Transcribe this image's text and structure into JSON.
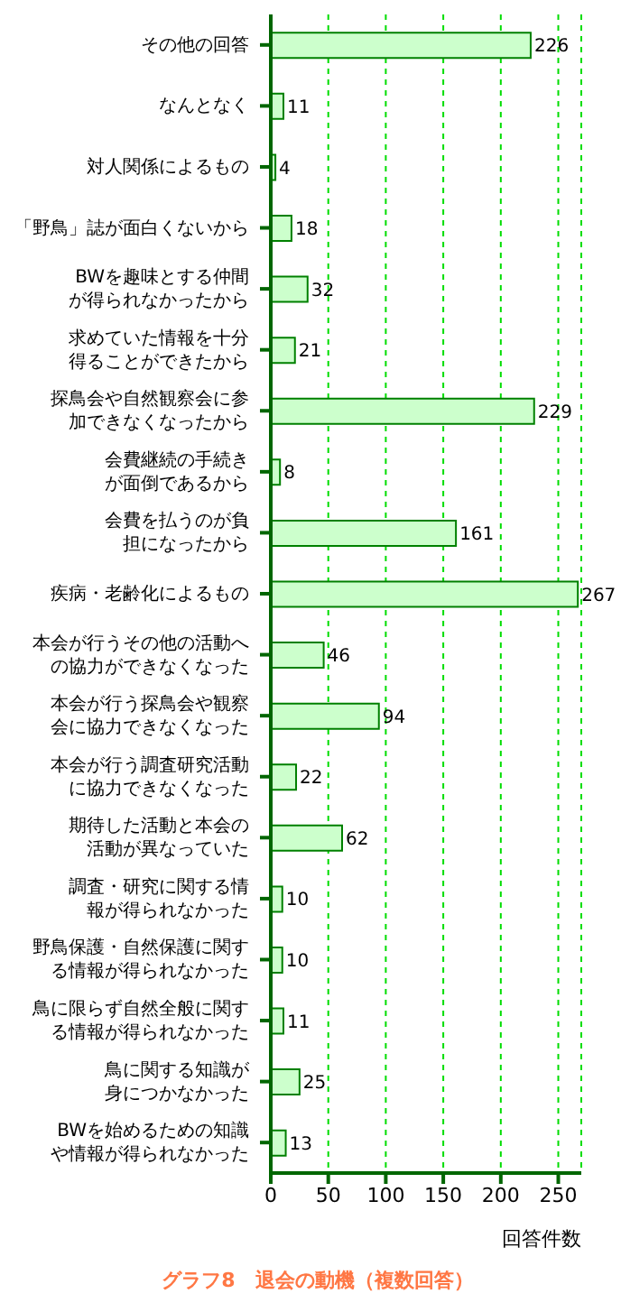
{
  "chart_data": {
    "type": "bar",
    "orientation": "horizontal",
    "title": "グラフ8　退会の動機（複数回答）",
    "xlabel": "回答件数",
    "categories": [
      "その他の回答",
      "なんとなく",
      "対人関係によるもの",
      "「野鳥」誌が面白くないから",
      "BWを趣味とする仲間が得られなかったから",
      "求めていた情報を十分得ることができたから",
      "探鳥会や自然観察会に参加できなくなったから",
      "会費継続の手続きが面倒であるから",
      "会費を払うのが負担になったから",
      "疾病・老齢化によるもの",
      "本会が行うその他の活動への協力ができなくなった",
      "本会が行う探鳥会や観察会に協力できなくなった",
      "本会が行う調査研究活動に協力できなくなった",
      "期待した活動と本会の活動が異なっていた",
      "調査・研究に関する情報が得られなかった",
      "野鳥保護・自然保護に関する情報が得られなかった",
      "鳥に限らず自然全般に関する情報が得られなかった",
      "鳥に関する知識が身につかなかった",
      "BWを始めるための知識や情報が得られなかった"
    ],
    "values": [
      226,
      11,
      4,
      18,
      32,
      21,
      229,
      8,
      161,
      267,
      46,
      94,
      22,
      62,
      10,
      10,
      11,
      25,
      13
    ],
    "color": "#ccffcc",
    "xlim": [
      0,
      270
    ],
    "xticks": [
      0,
      50,
      100,
      150,
      200,
      250
    ],
    "grid": "x",
    "data_labels": true
  }
}
